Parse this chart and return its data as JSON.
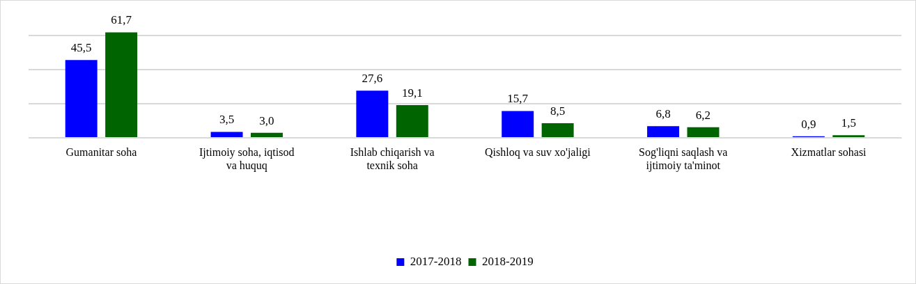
{
  "chart_data": {
    "type": "bar",
    "categories": [
      "Gumanitar soha",
      "Ijtimoiy soha, iqtisod va huquq",
      "Ishlab chiqarish va texnik soha",
      "Qishloq va suv xo'jaligi",
      "Sog'liqni saqlash va ijtimoiy ta'minot",
      "Xizmatlar sohasi"
    ],
    "series": [
      {
        "name": "2017-2018",
        "color": "#0000ff",
        "values": [
          45.5,
          3.5,
          27.6,
          15.7,
          6.8,
          0.9
        ],
        "value_labels": [
          "45,5",
          "3,5",
          "27,6",
          "15,7",
          "6,8",
          "0,9"
        ]
      },
      {
        "name": "2018-2019",
        "color": "#006400",
        "values": [
          61.7,
          3.0,
          19.1,
          8.5,
          6.2,
          1.5
        ],
        "value_labels": [
          "61,7",
          "3,0",
          "19,1",
          "8,5",
          "6,2",
          "1,5"
        ]
      }
    ],
    "yticks": [
      {
        "value": 0,
        "label": null
      },
      {
        "value": 20,
        "label": null
      },
      {
        "value": 40,
        "label": null
      },
      {
        "value": 60,
        "label": null
      }
    ],
    "tick_labels": "x",
    "grid": "y",
    "legend": "bottom"
  }
}
